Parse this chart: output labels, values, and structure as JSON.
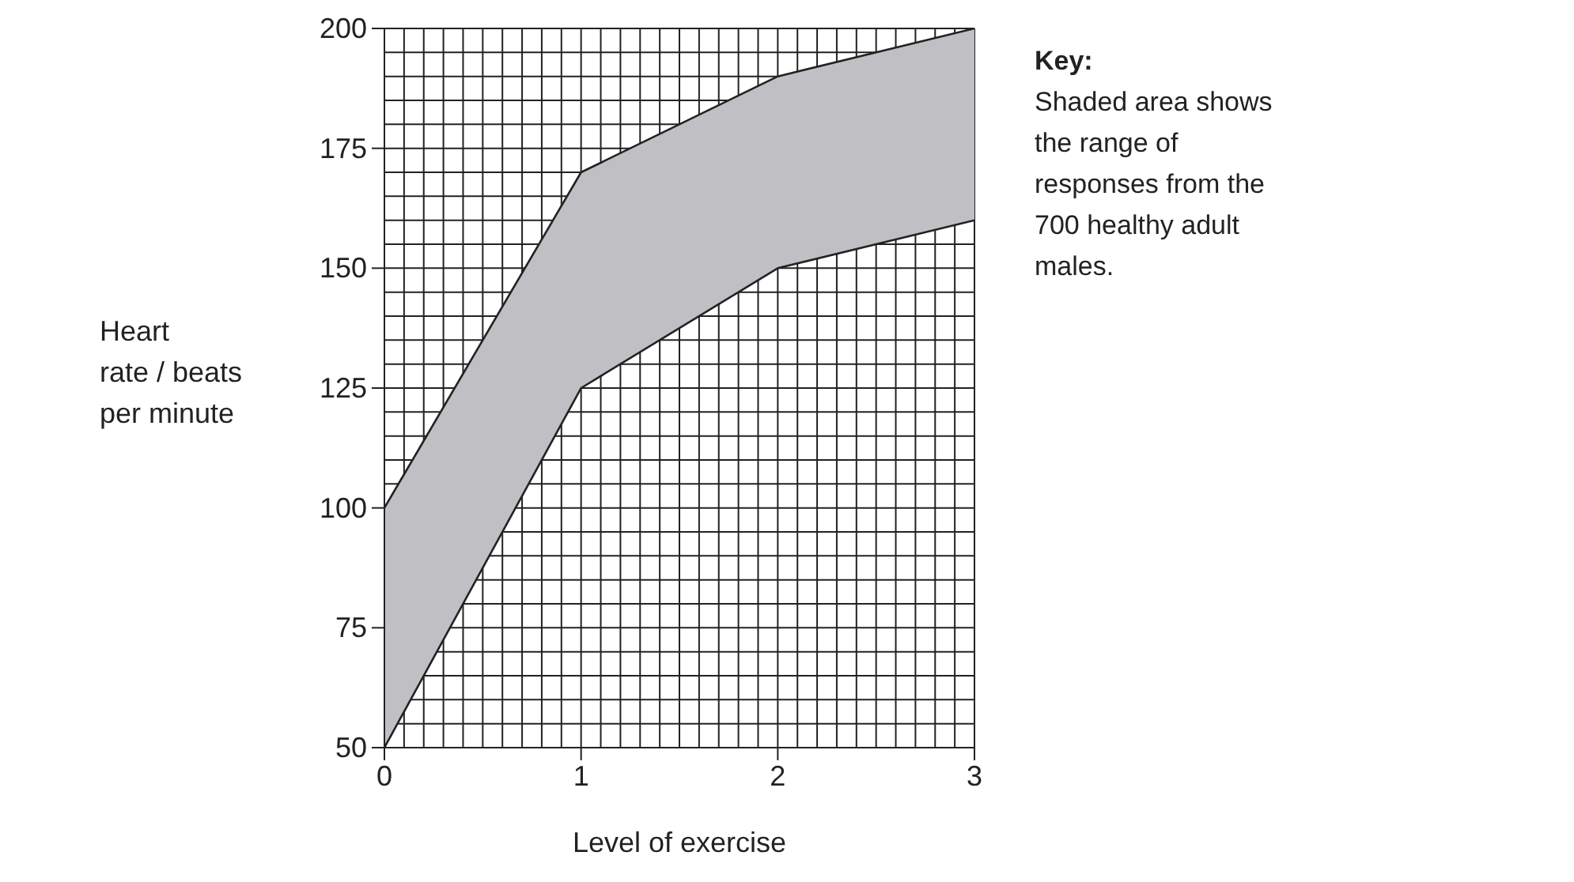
{
  "chart_data": {
    "type": "line",
    "xlabel": "Level of exercise",
    "ylabel": "Heart rate / beats per minute",
    "x": [
      0,
      1,
      2,
      3
    ],
    "series": [
      {
        "color": "#222222",
        "values": [
          50,
          125,
          150,
          160
        ]
      },
      {
        "color": "#222222",
        "values": [
          100,
          170,
          190,
          200
        ],
        "lower": [
          50,
          125,
          150,
          160
        ],
        "upper": [
          100,
          170,
          190,
          200
        ]
      }
    ],
    "xlim": [
      0,
      3
    ],
    "xticks": [
      0,
      {
        "value": 0.1,
        "label": null
      },
      {
        "value": 0.2,
        "label": null
      },
      {
        "value": 0.3,
        "label": null
      },
      {
        "value": 0.4,
        "label": null
      },
      {
        "value": 0.5,
        "label": null
      },
      {
        "value": 0.6,
        "label": null
      },
      {
        "value": 0.7,
        "label": null
      },
      {
        "value": 0.8,
        "label": null
      },
      {
        "value": 0.9,
        "label": null
      },
      1,
      {
        "value": 1.1,
        "label": null
      },
      {
        "value": 1.2,
        "label": null
      },
      {
        "value": 1.3,
        "label": null
      },
      {
        "value": 1.4,
        "label": null
      },
      {
        "value": 1.5,
        "label": null
      },
      {
        "value": 1.6,
        "label": null
      },
      {
        "value": 1.7,
        "label": null
      },
      {
        "value": 1.8,
        "label": null
      },
      {
        "value": 1.9,
        "label": null
      },
      2,
      {
        "value": 2.1,
        "label": null
      },
      {
        "value": 2.2,
        "label": null
      },
      {
        "value": 2.3,
        "label": null
      },
      {
        "value": 2.4,
        "label": null
      },
      {
        "value": 2.5,
        "label": null
      },
      {
        "value": 2.6,
        "label": null
      },
      {
        "value": 2.7,
        "label": null
      },
      {
        "value": 2.8,
        "label": null
      },
      {
        "value": 2.9,
        "label": null
      },
      3
    ],
    "ylim": [
      50,
      200
    ],
    "yticks": [
      50,
      {
        "value": 55,
        "label": null
      },
      {
        "value": 60,
        "label": null
      },
      {
        "value": 65,
        "label": null
      },
      {
        "value": 70,
        "label": null
      },
      75,
      {
        "value": 80,
        "label": null
      },
      {
        "value": 85,
        "label": null
      },
      {
        "value": 90,
        "label": null
      },
      {
        "value": 95,
        "label": null
      },
      100,
      {
        "value": 105,
        "label": null
      },
      {
        "value": 110,
        "label": null
      },
      {
        "value": 115,
        "label": null
      },
      {
        "value": 120,
        "label": null
      },
      125,
      {
        "value": 130,
        "label": null
      },
      {
        "value": 135,
        "label": null
      },
      {
        "value": 140,
        "label": null
      },
      {
        "value": 145,
        "label": null
      },
      150,
      {
        "value": 155,
        "label": null
      },
      {
        "value": 160,
        "label": null
      },
      {
        "value": 165,
        "label": null
      },
      {
        "value": 170,
        "label": null
      },
      175,
      {
        "value": 180,
        "label": null
      },
      {
        "value": 185,
        "label": null
      },
      {
        "value": 190,
        "label": null
      },
      {
        "value": 195,
        "label": null
      },
      200
    ],
    "grid": true,
    "annotations": [
      "Key:",
      "Shaded area shows the range of responses from the 700 healthy adult males."
    ]
  }
}
